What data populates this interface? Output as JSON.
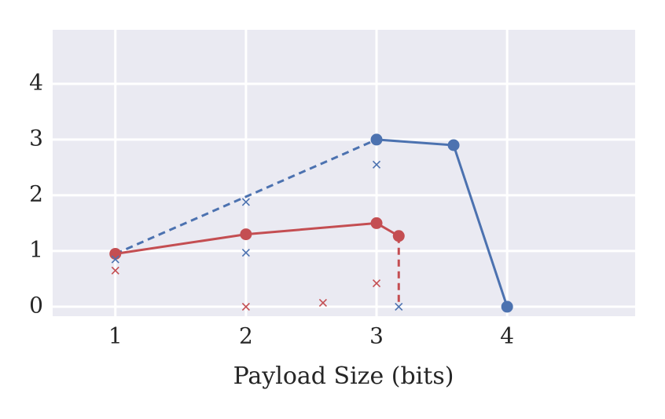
{
  "chart_data": {
    "type": "line",
    "xlabel": "Payload Size (bits)",
    "xlim": [
      0.52,
      4.98
    ],
    "ylim": [
      -0.17,
      4.97
    ],
    "xticks": [
      1,
      2,
      3,
      4
    ],
    "yticks": [
      0,
      1,
      2,
      3,
      4
    ],
    "grid": true,
    "series": [
      {
        "color": "#4c72b0",
        "linestyle": "solid",
        "marker": "circle",
        "x": [
          3,
          3.59,
          4
        ],
        "y": [
          3,
          2.9,
          0
        ]
      },
      {
        "color": "#4c72b0",
        "linestyle": "dashed",
        "marker": null,
        "x": [
          1,
          3
        ],
        "y": [
          0.95,
          3
        ]
      },
      {
        "color": "#c44e52",
        "linestyle": "solid",
        "marker": "circle",
        "x": [
          1,
          2,
          3,
          3.17
        ],
        "y": [
          0.95,
          1.3,
          1.5,
          1.27
        ]
      },
      {
        "color": "#c44e52",
        "linestyle": "dashed",
        "marker": null,
        "x": [
          3.17,
          3.17
        ],
        "y": [
          1.27,
          0
        ]
      },
      {
        "color": "#4c72b0",
        "linestyle": null,
        "marker": "x",
        "x": [
          1,
          2,
          2,
          3,
          3.17
        ],
        "y": [
          0.85,
          1.88,
          0.97,
          2.55,
          0
        ]
      },
      {
        "color": "#c44e52",
        "linestyle": null,
        "marker": "x",
        "x": [
          1,
          2,
          2.59,
          3
        ],
        "y": [
          0.65,
          0,
          0.07,
          0.42
        ]
      }
    ]
  }
}
